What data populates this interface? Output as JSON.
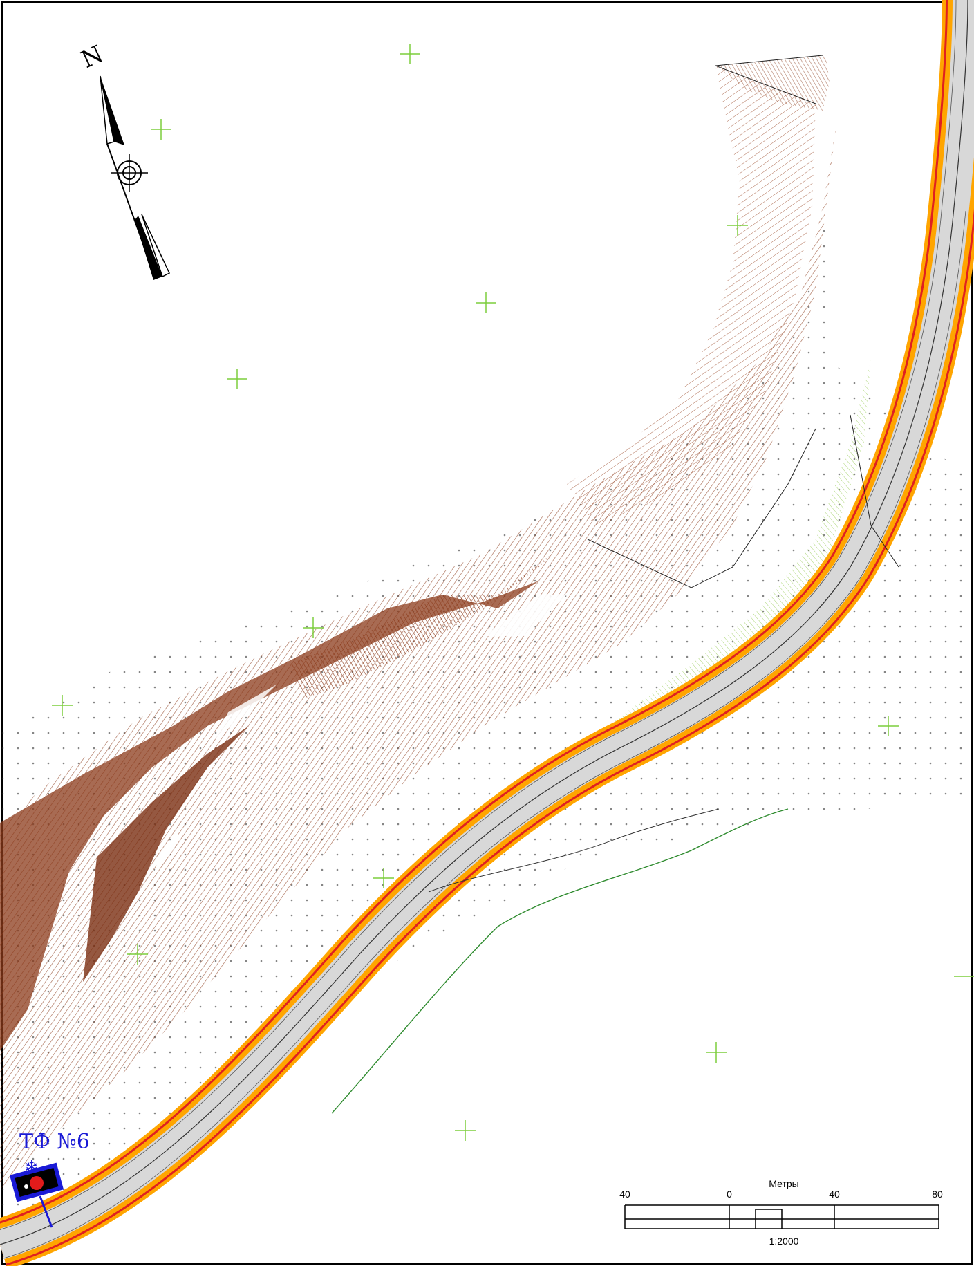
{
  "map": {
    "north_label": "N",
    "station_label": "ТФ №6",
    "scale_bar": {
      "title": "Метры",
      "ticks": [
        "40",
        "0",
        "40",
        "80"
      ],
      "ratio": "1:2000"
    }
  },
  "colors": {
    "background": "#ffffff",
    "frame": "#000000",
    "terrain_brown": "#8b3a1a",
    "terrain_fill": "#c98a6a",
    "road_surface": "#d8d8d8",
    "road_edge_orange": "#ffa500",
    "road_edge_red": "#e02020",
    "grid_cross_green": "#7ccd3c",
    "vegetation_green": "#2e8b2e",
    "station_blue": "#1a1ad6",
    "station_red": "#e21b1b"
  },
  "icons": {
    "north_arrow": "north-arrow-icon",
    "compass_rose": "compass-rose-icon",
    "station_marker": "station-marker-icon",
    "grid_cross": "grid-cross-icon",
    "snowflake": "snowflake-icon"
  }
}
